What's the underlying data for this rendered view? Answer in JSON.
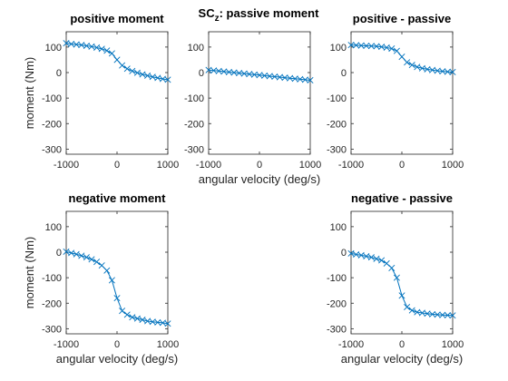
{
  "figure": {
    "suptitle_main": "SC",
    "suptitle_sub": "z",
    "suptitle_rest": ": passive moment"
  },
  "chart_data": [
    {
      "type": "line",
      "title": "positive moment",
      "xlabel": "",
      "ylabel": "moment (Nm)",
      "xlim": [
        -1000,
        1000
      ],
      "ylim": [
        -320,
        160
      ],
      "xticks": [
        -1000,
        0,
        1000
      ],
      "yticks": [
        -300,
        -200,
        -100,
        0,
        100
      ],
      "series": [
        {
          "marker": "x",
          "color": "#0072BD",
          "x": [
            -1000,
            -900,
            -800,
            -700,
            -600,
            -500,
            -400,
            -300,
            -200,
            -100,
            0,
            100,
            200,
            300,
            400,
            500,
            600,
            700,
            800,
            900,
            1000
          ],
          "y": [
            115,
            112,
            110,
            108,
            105,
            102,
            98,
            93,
            86,
            75,
            50,
            28,
            15,
            6,
            -1,
            -7,
            -12,
            -17,
            -21,
            -25,
            -28
          ]
        }
      ]
    },
    {
      "type": "line",
      "title": "",
      "xlabel": "angular velocity (deg/s)",
      "ylabel": "",
      "xlim": [
        -1000,
        1000
      ],
      "ylim": [
        -320,
        160
      ],
      "xticks": [
        -1000,
        0,
        1000
      ],
      "yticks": [
        -300,
        -200,
        -100,
        0,
        100
      ],
      "series": [
        {
          "marker": "x",
          "color": "#0072BD",
          "x": [
            -1000,
            -900,
            -800,
            -700,
            -600,
            -500,
            -400,
            -300,
            -200,
            -100,
            0,
            100,
            200,
            300,
            400,
            500,
            600,
            700,
            800,
            900,
            1000
          ],
          "y": [
            10,
            8,
            6,
            4,
            2,
            0,
            -2,
            -4,
            -6,
            -8,
            -10,
            -12,
            -14,
            -16,
            -18,
            -20,
            -22,
            -24,
            -26,
            -28,
            -30
          ]
        }
      ]
    },
    {
      "type": "line",
      "title": "positive - passive",
      "xlabel": "",
      "ylabel": "",
      "xlim": [
        -1000,
        1000
      ],
      "ylim": [
        -320,
        160
      ],
      "xticks": [
        -1000,
        0,
        1000
      ],
      "yticks": [
        -300,
        -200,
        -100,
        0,
        100
      ],
      "series": [
        {
          "marker": "x",
          "color": "#0072BD",
          "x": [
            -1000,
            -900,
            -800,
            -700,
            -600,
            -500,
            -400,
            -300,
            -200,
            -100,
            0,
            100,
            200,
            300,
            400,
            500,
            600,
            700,
            800,
            900,
            1000
          ],
          "y": [
            108,
            107,
            106,
            105,
            104,
            103,
            101,
            98,
            94,
            85,
            62,
            40,
            30,
            22,
            17,
            13,
            10,
            7,
            5,
            3,
            2
          ]
        }
      ]
    },
    {
      "type": "line",
      "title": "negative moment",
      "xlabel": "angular velocity (deg/s)",
      "ylabel": "moment (Nm)",
      "xlim": [
        -1000,
        1000
      ],
      "ylim": [
        -320,
        160
      ],
      "xticks": [
        -1000,
        0,
        1000
      ],
      "yticks": [
        -300,
        -200,
        -100,
        0,
        100
      ],
      "series": [
        {
          "marker": "x",
          "color": "#0072BD",
          "x": [
            -1000,
            -900,
            -800,
            -700,
            -600,
            -500,
            -400,
            -300,
            -200,
            -100,
            0,
            100,
            200,
            300,
            400,
            500,
            600,
            700,
            800,
            900,
            1000
          ],
          "y": [
            2,
            -3,
            -8,
            -14,
            -20,
            -28,
            -38,
            -52,
            -72,
            -110,
            -180,
            -230,
            -245,
            -255,
            -260,
            -265,
            -270,
            -273,
            -275,
            -277,
            -280
          ]
        }
      ]
    },
    {
      "type": "line",
      "title": "negative - passive",
      "xlabel": "angular velocity (deg/s)",
      "ylabel": "",
      "xlim": [
        -1000,
        1000
      ],
      "ylim": [
        -320,
        160
      ],
      "xticks": [
        -1000,
        0,
        1000
      ],
      "yticks": [
        -300,
        -200,
        -100,
        0,
        100
      ],
      "series": [
        {
          "marker": "x",
          "color": "#0072BD",
          "x": [
            -1000,
            -900,
            -800,
            -700,
            -600,
            -500,
            -400,
            -300,
            -200,
            -100,
            0,
            100,
            200,
            300,
            400,
            500,
            600,
            700,
            800,
            900,
            1000
          ],
          "y": [
            -5,
            -9,
            -12,
            -16,
            -20,
            -26,
            -32,
            -44,
            -62,
            -100,
            -170,
            -215,
            -228,
            -235,
            -238,
            -241,
            -243,
            -245,
            -246,
            -247,
            -248
          ]
        }
      ]
    }
  ]
}
